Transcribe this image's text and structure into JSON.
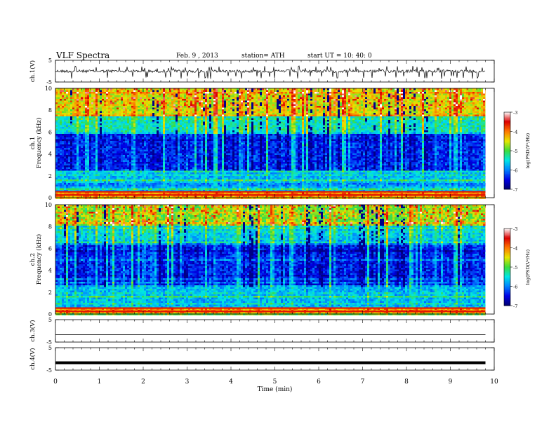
{
  "header": {
    "title": "VLF  Spectra",
    "date": "Feb. 9  , 2013",
    "station": "station= ATH",
    "start": "start  UT  =   10: 40: 0"
  },
  "chart_data": [
    {
      "type": "line",
      "panel": "ch1-waveform",
      "ylabel": "ch.1(V)",
      "ylim": [
        -5,
        5
      ],
      "yticks": [
        5,
        -5
      ],
      "x_range_min": [
        0,
        9.8
      ],
      "baseline_v": 0,
      "spike_range_v": [
        -3.5,
        2.5
      ],
      "color": "#000000"
    },
    {
      "type": "heatmap",
      "panel": "ch1-spectrogram",
      "ylabel": "ch.1\nFrequency  (kHz)",
      "ylim": [
        0,
        10
      ],
      "yticks": [
        0,
        2,
        4,
        6,
        8,
        10
      ],
      "x_range_min": [
        0,
        9.8
      ],
      "bands_khz": [
        {
          "from": 0,
          "to": 0.5,
          "level": -4.2
        },
        {
          "from": 0.5,
          "to": 2.5,
          "level": -5.8
        },
        {
          "from": 2.5,
          "to": 5.8,
          "level": -6.6
        },
        {
          "from": 5.8,
          "to": 7.5,
          "level": -5.6
        },
        {
          "from": 7.5,
          "to": 10,
          "level": -4.7
        }
      ],
      "colorbar": {
        "label": "log(PSD(V²/Hz)",
        "ticks": [
          "-3",
          "-4",
          "-5",
          "-6",
          "-7"
        ],
        "range": [
          -7,
          -3
        ]
      }
    },
    {
      "type": "heatmap",
      "panel": "ch2-spectrogram",
      "ylabel": "ch.2\nFrequency  (kHz)",
      "ylim": [
        0,
        10
      ],
      "yticks": [
        0,
        2,
        4,
        6,
        8,
        10
      ],
      "x_range_min": [
        0,
        9.8
      ],
      "bands_khz": [
        {
          "from": 0,
          "to": 0.5,
          "level": -4.2
        },
        {
          "from": 0.5,
          "to": 2.5,
          "level": -5.8
        },
        {
          "from": 2.5,
          "to": 6.5,
          "level": -6.6
        },
        {
          "from": 6.5,
          "to": 8,
          "level": -5.8
        },
        {
          "from": 8,
          "to": 10,
          "level": -5.0
        }
      ],
      "colorbar": {
        "label": "log(PSD(V²/Hz)",
        "ticks": [
          "-3",
          "-4",
          "-5",
          "-6",
          "-7"
        ],
        "range": [
          -7,
          -3
        ]
      }
    },
    {
      "type": "line",
      "panel": "ch3-waveform",
      "ylabel": "ch.3(V)",
      "ylim": [
        -5,
        5
      ],
      "yticks": [
        5,
        -5
      ],
      "x_range_min": [
        0,
        9.8
      ],
      "baseline_v": -1.7,
      "color": "#000000"
    },
    {
      "type": "line",
      "panel": "ch4-waveform",
      "ylabel": "ch.4(V)",
      "ylim": [
        -5,
        5
      ],
      "yticks": [
        5,
        -5
      ],
      "x_range_min": [
        0,
        9.8
      ],
      "baseline_v": -1.7,
      "color": "#000000"
    }
  ],
  "x_axis": {
    "label": "Time  (min)",
    "range": [
      0,
      10
    ],
    "ticks": [
      "0",
      "1",
      "2",
      "3",
      "4",
      "5",
      "6",
      "7",
      "8",
      "9",
      "10"
    ]
  }
}
